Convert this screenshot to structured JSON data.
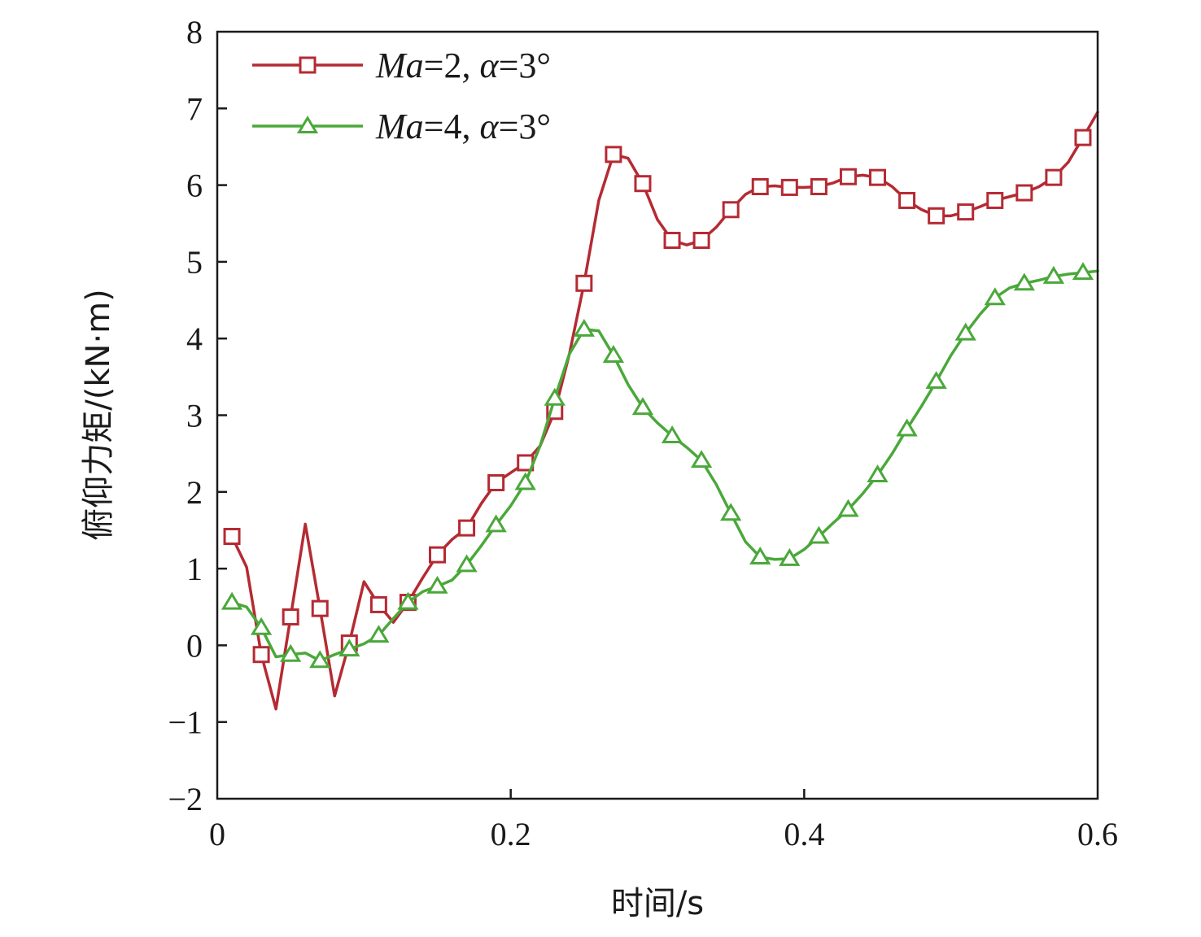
{
  "chart_data": {
    "type": "line",
    "xlabel": "时间/s",
    "ylabel": "俯仰力矩/(kN·m)",
    "xlim": [
      0,
      0.6
    ],
    "ylim": [
      -2,
      8
    ],
    "xticks": [
      0,
      0.2,
      0.4,
      0.6
    ],
    "xtick_labels": [
      "0",
      "0.2",
      "0.4",
      "0.6"
    ],
    "yticks": [
      -2,
      -1,
      0,
      1,
      2,
      3,
      4,
      5,
      6,
      7,
      8
    ],
    "ytick_labels": [
      "−2",
      "−1",
      "0",
      "1",
      "2",
      "3",
      "4",
      "5",
      "6",
      "7",
      "8"
    ],
    "grid": false,
    "legend_position": "top-left",
    "series": [
      {
        "name": "Ma=2, α=3°",
        "legend_parts": [
          {
            "text": "Ma",
            "italic": true
          },
          {
            "text": "=2, ",
            "italic": false
          },
          {
            "text": "α",
            "italic": true
          },
          {
            "text": "=3°",
            "italic": false
          }
        ],
        "color": "#b52a33",
        "marker": "square",
        "line": [
          [
            0.01,
            1.42
          ],
          [
            0.02,
            1.02
          ],
          [
            0.03,
            -0.12
          ],
          [
            0.04,
            -0.83
          ],
          [
            0.05,
            0.37
          ],
          [
            0.06,
            1.58
          ],
          [
            0.07,
            0.48
          ],
          [
            0.08,
            -0.66
          ],
          [
            0.09,
            0.03
          ],
          [
            0.1,
            0.83
          ],
          [
            0.11,
            0.53
          ],
          [
            0.12,
            0.3
          ],
          [
            0.13,
            0.56
          ],
          [
            0.14,
            0.88
          ],
          [
            0.15,
            1.18
          ],
          [
            0.16,
            1.38
          ],
          [
            0.17,
            1.53
          ],
          [
            0.18,
            1.85
          ],
          [
            0.19,
            2.12
          ],
          [
            0.2,
            2.25
          ],
          [
            0.21,
            2.38
          ],
          [
            0.22,
            2.6
          ],
          [
            0.23,
            3.05
          ],
          [
            0.24,
            3.8
          ],
          [
            0.25,
            4.72
          ],
          [
            0.26,
            5.8
          ],
          [
            0.27,
            6.4
          ],
          [
            0.28,
            6.35
          ],
          [
            0.29,
            6.02
          ],
          [
            0.3,
            5.55
          ],
          [
            0.31,
            5.28
          ],
          [
            0.32,
            5.22
          ],
          [
            0.33,
            5.28
          ],
          [
            0.34,
            5.45
          ],
          [
            0.35,
            5.68
          ],
          [
            0.36,
            5.88
          ],
          [
            0.37,
            5.98
          ],
          [
            0.38,
            5.99
          ],
          [
            0.39,
            5.97
          ],
          [
            0.4,
            5.97
          ],
          [
            0.41,
            5.98
          ],
          [
            0.42,
            6.03
          ],
          [
            0.43,
            6.11
          ],
          [
            0.44,
            6.13
          ],
          [
            0.45,
            6.1
          ],
          [
            0.46,
            5.98
          ],
          [
            0.47,
            5.8
          ],
          [
            0.48,
            5.68
          ],
          [
            0.49,
            5.6
          ],
          [
            0.5,
            5.6
          ],
          [
            0.51,
            5.65
          ],
          [
            0.52,
            5.72
          ],
          [
            0.53,
            5.8
          ],
          [
            0.54,
            5.85
          ],
          [
            0.55,
            5.9
          ],
          [
            0.56,
            5.98
          ],
          [
            0.57,
            6.1
          ],
          [
            0.58,
            6.3
          ],
          [
            0.59,
            6.62
          ],
          [
            0.6,
            6.95
          ]
        ],
        "markers": [
          [
            0.01,
            1.42
          ],
          [
            0.03,
            -0.12
          ],
          [
            0.05,
            0.37
          ],
          [
            0.07,
            0.48
          ],
          [
            0.09,
            0.03
          ],
          [
            0.11,
            0.53
          ],
          [
            0.13,
            0.56
          ],
          [
            0.15,
            1.18
          ],
          [
            0.17,
            1.53
          ],
          [
            0.19,
            2.12
          ],
          [
            0.21,
            2.38
          ],
          [
            0.23,
            3.05
          ],
          [
            0.25,
            4.72
          ],
          [
            0.27,
            6.4
          ],
          [
            0.29,
            6.02
          ],
          [
            0.31,
            5.28
          ],
          [
            0.33,
            5.28
          ],
          [
            0.35,
            5.68
          ],
          [
            0.37,
            5.98
          ],
          [
            0.39,
            5.97
          ],
          [
            0.41,
            5.98
          ],
          [
            0.43,
            6.11
          ],
          [
            0.45,
            6.1
          ],
          [
            0.47,
            5.8
          ],
          [
            0.49,
            5.6
          ],
          [
            0.51,
            5.65
          ],
          [
            0.53,
            5.8
          ],
          [
            0.55,
            5.9
          ],
          [
            0.57,
            6.1
          ],
          [
            0.59,
            6.62
          ]
        ]
      },
      {
        "name": "Ma=4, α=3°",
        "legend_parts": [
          {
            "text": "Ma",
            "italic": true
          },
          {
            "text": "=4, ",
            "italic": false
          },
          {
            "text": "α",
            "italic": true
          },
          {
            "text": "=3°",
            "italic": false
          }
        ],
        "color": "#4aa83a",
        "marker": "triangle",
        "line": [
          [
            0.01,
            0.56
          ],
          [
            0.02,
            0.5
          ],
          [
            0.03,
            0.23
          ],
          [
            0.04,
            -0.15
          ],
          [
            0.05,
            -0.12
          ],
          [
            0.06,
            -0.1
          ],
          [
            0.07,
            -0.2
          ],
          [
            0.08,
            -0.12
          ],
          [
            0.09,
            -0.05
          ],
          [
            0.1,
            0.02
          ],
          [
            0.11,
            0.13
          ],
          [
            0.12,
            0.35
          ],
          [
            0.13,
            0.56
          ],
          [
            0.14,
            0.7
          ],
          [
            0.15,
            0.77
          ],
          [
            0.16,
            0.85
          ],
          [
            0.17,
            1.05
          ],
          [
            0.18,
            1.3
          ],
          [
            0.19,
            1.57
          ],
          [
            0.2,
            1.82
          ],
          [
            0.21,
            2.12
          ],
          [
            0.22,
            2.6
          ],
          [
            0.23,
            3.22
          ],
          [
            0.24,
            3.8
          ],
          [
            0.25,
            4.12
          ],
          [
            0.26,
            4.1
          ],
          [
            0.27,
            3.78
          ],
          [
            0.28,
            3.4
          ],
          [
            0.29,
            3.1
          ],
          [
            0.3,
            2.9
          ],
          [
            0.31,
            2.73
          ],
          [
            0.32,
            2.58
          ],
          [
            0.33,
            2.41
          ],
          [
            0.34,
            2.1
          ],
          [
            0.35,
            1.72
          ],
          [
            0.36,
            1.35
          ],
          [
            0.37,
            1.15
          ],
          [
            0.38,
            1.12
          ],
          [
            0.39,
            1.13
          ],
          [
            0.4,
            1.25
          ],
          [
            0.41,
            1.42
          ],
          [
            0.42,
            1.6
          ],
          [
            0.43,
            1.77
          ],
          [
            0.44,
            1.98
          ],
          [
            0.45,
            2.22
          ],
          [
            0.46,
            2.5
          ],
          [
            0.47,
            2.82
          ],
          [
            0.48,
            3.12
          ],
          [
            0.49,
            3.44
          ],
          [
            0.5,
            3.78
          ],
          [
            0.51,
            4.07
          ],
          [
            0.52,
            4.32
          ],
          [
            0.53,
            4.53
          ],
          [
            0.54,
            4.66
          ],
          [
            0.55,
            4.72
          ],
          [
            0.56,
            4.76
          ],
          [
            0.57,
            4.81
          ],
          [
            0.58,
            4.84
          ],
          [
            0.59,
            4.86
          ],
          [
            0.6,
            4.88
          ]
        ],
        "markers": [
          [
            0.01,
            0.56
          ],
          [
            0.03,
            0.23
          ],
          [
            0.05,
            -0.12
          ],
          [
            0.07,
            -0.2
          ],
          [
            0.09,
            -0.05
          ],
          [
            0.11,
            0.13
          ],
          [
            0.13,
            0.56
          ],
          [
            0.15,
            0.77
          ],
          [
            0.17,
            1.05
          ],
          [
            0.19,
            1.57
          ],
          [
            0.21,
            2.12
          ],
          [
            0.23,
            3.22
          ],
          [
            0.25,
            4.12
          ],
          [
            0.27,
            3.78
          ],
          [
            0.29,
            3.1
          ],
          [
            0.31,
            2.73
          ],
          [
            0.33,
            2.41
          ],
          [
            0.35,
            1.72
          ],
          [
            0.37,
            1.15
          ],
          [
            0.39,
            1.13
          ],
          [
            0.41,
            1.42
          ],
          [
            0.43,
            1.77
          ],
          [
            0.45,
            2.22
          ],
          [
            0.47,
            2.82
          ],
          [
            0.49,
            3.44
          ],
          [
            0.51,
            4.07
          ],
          [
            0.53,
            4.53
          ],
          [
            0.55,
            4.72
          ],
          [
            0.57,
            4.81
          ],
          [
            0.59,
            4.86
          ]
        ]
      }
    ]
  }
}
